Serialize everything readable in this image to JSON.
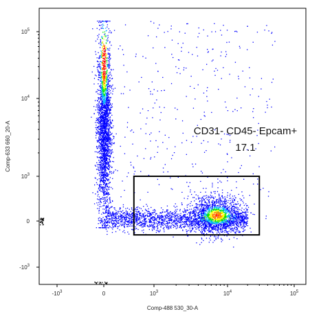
{
  "chart_data": {
    "type": "scatter",
    "plot_style": "flow-cytometry density dot plot",
    "xlabel": "Comp-488 530_30-A",
    "ylabel": "Comp-633 660_20-A",
    "x_scale": "biexponential",
    "y_scale": "biexponential",
    "x_ticks": [
      {
        "value": -1000,
        "base": "-10",
        "exp": "3"
      },
      {
        "value": 0,
        "base": "0",
        "exp": ""
      },
      {
        "value": 1000,
        "base": "10",
        "exp": "3"
      },
      {
        "value": 10000,
        "base": "10",
        "exp": "4"
      },
      {
        "value": 100000,
        "base": "10",
        "exp": "5"
      }
    ],
    "y_ticks": [
      {
        "value": -1000,
        "base": "-10",
        "exp": "3"
      },
      {
        "value": 0,
        "base": "0",
        "exp": ""
      },
      {
        "value": 1000,
        "base": "10",
        "exp": "3"
      },
      {
        "value": 10000,
        "base": "10",
        "exp": "4"
      },
      {
        "value": 100000,
        "base": "10",
        "exp": "5"
      }
    ],
    "xlim": [
      -2500,
      250000
    ],
    "ylim": [
      -2500,
      250000
    ],
    "populations": [
      {
        "x_center": 0,
        "x_spread": 60,
        "y_center": 30000,
        "y_spread_decades": 0.6,
        "density": "high"
      },
      {
        "x_center": 7000,
        "x_spread_decades": 0.25,
        "y_center": 0,
        "y_spread": 120,
        "density": "medium"
      }
    ],
    "gate": {
      "name": "CD31- CD45- Epcam+",
      "percent": "17.1",
      "x_range": [
        600,
        30000
      ],
      "y_range": [
        -300,
        1000
      ]
    },
    "density_colors": [
      "#0000ff",
      "#00b4ff",
      "#00e600",
      "#ffff00",
      "#ff8000",
      "#ff0000"
    ],
    "grid": false
  }
}
